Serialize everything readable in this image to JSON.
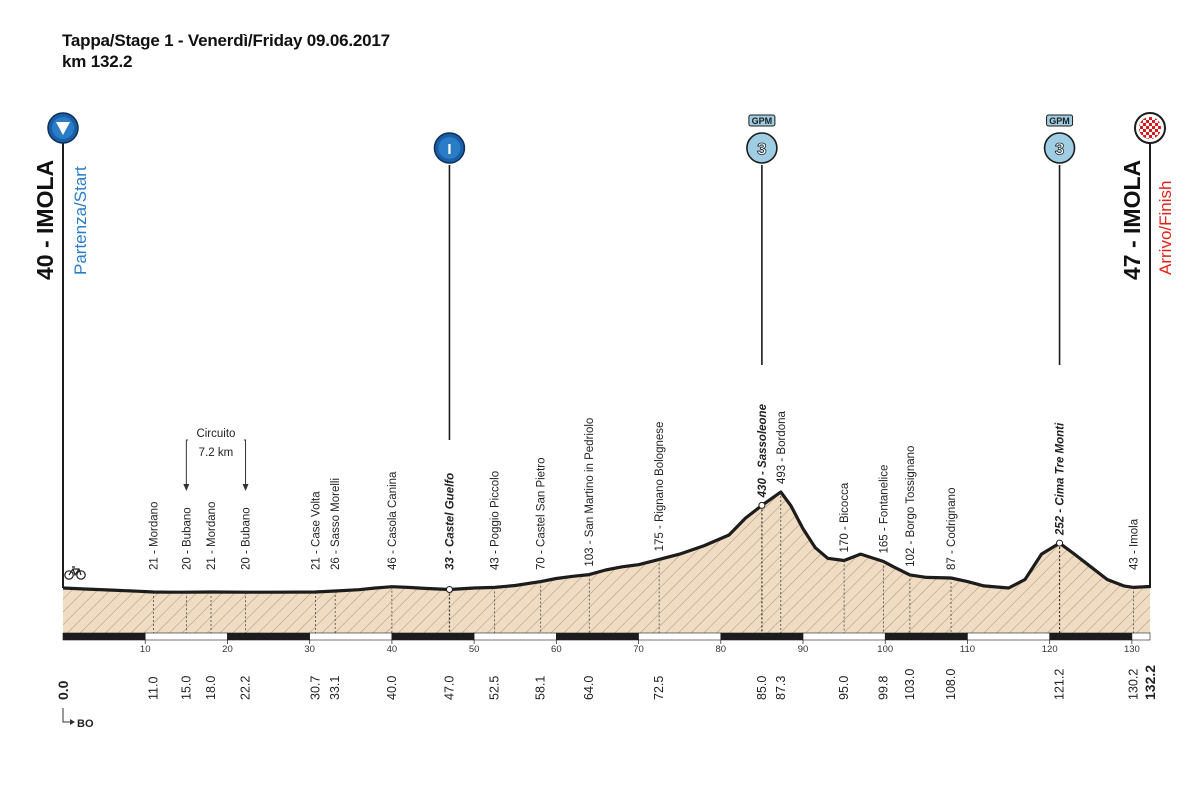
{
  "header": {
    "line1": "Tappa/Stage 1 - Venerdì/Friday  09.06.2017",
    "line2": "km 132.2"
  },
  "start": {
    "title": "40 - IMOLA",
    "subtitle": "Partenza/Start",
    "color": "#2a7cc7"
  },
  "finish": {
    "title": "47 - IMOLA",
    "subtitle": "Arrivo/Finish",
    "color": "#e2231a"
  },
  "circuit": {
    "label": "Circuito",
    "length": "7.2 km",
    "from_km": 15.0,
    "to_km": 22.2
  },
  "bo_label": "BO",
  "colors": {
    "fill": "#efdcc3",
    "line": "#1c1c1c",
    "marker_blue": "#1a5ea8",
    "gpm_blue": "#9fcde3"
  },
  "chart_data": {
    "type": "area",
    "xlim": [
      0,
      132.2
    ],
    "ylim": [
      0,
      520
    ],
    "x_ticks": [
      10,
      20,
      30,
      40,
      50,
      60,
      70,
      80,
      90,
      100,
      110,
      120,
      130
    ],
    "profile": [
      [
        0,
        40
      ],
      [
        3,
        35
      ],
      [
        6,
        30
      ],
      [
        9,
        25
      ],
      [
        11,
        21
      ],
      [
        13,
        20
      ],
      [
        15,
        20
      ],
      [
        18,
        21
      ],
      [
        22.2,
        20
      ],
      [
        26,
        20
      ],
      [
        30.7,
        21
      ],
      [
        33.1,
        26
      ],
      [
        36,
        32
      ],
      [
        38,
        40
      ],
      [
        40,
        46
      ],
      [
        42,
        43
      ],
      [
        44,
        38
      ],
      [
        47,
        33
      ],
      [
        50,
        40
      ],
      [
        52.5,
        43
      ],
      [
        55,
        52
      ],
      [
        58.1,
        70
      ],
      [
        60,
        85
      ],
      [
        62,
        95
      ],
      [
        64,
        103
      ],
      [
        66,
        125
      ],
      [
        68,
        140
      ],
      [
        70,
        150
      ],
      [
        72.5,
        175
      ],
      [
        75,
        200
      ],
      [
        78,
        240
      ],
      [
        81,
        290
      ],
      [
        83,
        370
      ],
      [
        85,
        430
      ],
      [
        87.3,
        493
      ],
      [
        88.5,
        430
      ],
      [
        90,
        320
      ],
      [
        91.5,
        230
      ],
      [
        93,
        180
      ],
      [
        95,
        170
      ],
      [
        97,
        200
      ],
      [
        99.8,
        165
      ],
      [
        101,
        140
      ],
      [
        103,
        102
      ],
      [
        105,
        90
      ],
      [
        108,
        87
      ],
      [
        110,
        70
      ],
      [
        112,
        50
      ],
      [
        115,
        40
      ],
      [
        117,
        80
      ],
      [
        119,
        200
      ],
      [
        121.2,
        252
      ],
      [
        123,
        200
      ],
      [
        125,
        140
      ],
      [
        127,
        80
      ],
      [
        129,
        50
      ],
      [
        130.2,
        43
      ],
      [
        132.2,
        47
      ]
    ],
    "waypoints": [
      {
        "km": "11.0",
        "text": "21 - Mordano",
        "x": 11.0,
        "bold": false
      },
      {
        "km": "15.0",
        "text": "20 - Bubano",
        "x": 15.0,
        "bold": false
      },
      {
        "km": "18.0",
        "text": "21 - Mordano",
        "x": 18.0,
        "bold": false
      },
      {
        "km": "22.2",
        "text": "20 - Bubano",
        "x": 22.2,
        "bold": false
      },
      {
        "km": "30.7",
        "text": "21 - Case Volta",
        "x": 30.7,
        "bold": false
      },
      {
        "km": "33.1",
        "text": "26 - Sasso Morelli",
        "x": 33.1,
        "bold": false
      },
      {
        "km": "40.0",
        "text": "46 - Casola Canina",
        "x": 40.0,
        "bold": false
      },
      {
        "km": "47.0",
        "text": "33 - Castel Guelfo",
        "x": 47.0,
        "bold": true
      },
      {
        "km": "52.5",
        "text": "43 - Poggio Piccolo",
        "x": 52.5,
        "bold": false
      },
      {
        "km": "58.1",
        "text": "70 - Castel San Pietro",
        "x": 58.1,
        "bold": false
      },
      {
        "km": "64.0",
        "text": "103 - San Martino in Pedriolo",
        "x": 64.0,
        "bold": false
      },
      {
        "km": "72.5",
        "text": "175 - Rignano Bolognese",
        "x": 72.5,
        "bold": false
      },
      {
        "km": "85.0",
        "text": "430 - Sassoleone",
        "x": 85.0,
        "bold": true
      },
      {
        "km": "87.3",
        "text": "493 - Bordona",
        "x": 87.3,
        "bold": false
      },
      {
        "km": "95.0",
        "text": "170 - Bicocca",
        "x": 95.0,
        "bold": false
      },
      {
        "km": "99.8",
        "text": "165 - Fontanelice",
        "x": 99.8,
        "bold": false
      },
      {
        "km": "103.0",
        "text": "102 - Borgo Tossignano",
        "x": 103.0,
        "bold": false
      },
      {
        "km": "108.0",
        "text": "87 - Codrignano",
        "x": 108.0,
        "bold": false
      },
      {
        "km": "121.2",
        "text": "252 - Cima Tre Monti",
        "x": 121.2,
        "bold": true
      },
      {
        "km": "130.2",
        "text": "43 - Imola",
        "x": 130.2,
        "bold": false
      }
    ],
    "start_km": "0.0",
    "finish_km": "132.2",
    "markers": [
      {
        "type": "sprint",
        "x": 47.0,
        "symbol": "I"
      },
      {
        "type": "gpm",
        "x": 85.0,
        "label": "GPM",
        "category": "3"
      },
      {
        "type": "gpm",
        "x": 121.2,
        "label": "GPM",
        "category": "3"
      }
    ]
  }
}
